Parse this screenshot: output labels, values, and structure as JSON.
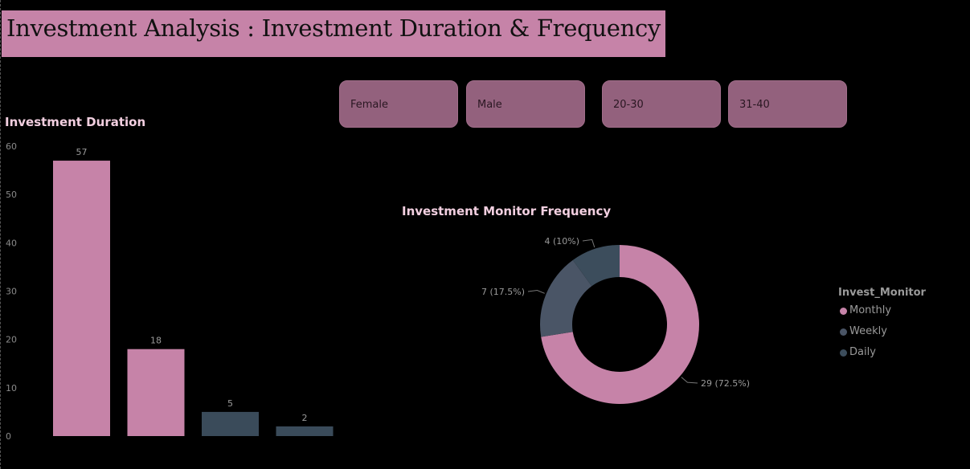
{
  "title": "Investment Analysis : Investment Duration & Frequency",
  "slicers": [
    "Female",
    "Male",
    "20-30",
    "31-40"
  ],
  "colors": {
    "pink": "#c683a8",
    "slate": "#3f4b59",
    "slate_mid": "#4a5566",
    "slicer_bg": "#93617d"
  },
  "chart_data": [
    {
      "type": "bar",
      "title": "Investment Duration",
      "categories": [
        "",
        "",
        "",
        ""
      ],
      "values": [
        57,
        18,
        5,
        2
      ],
      "data_labels": [
        "57",
        "18",
        "5",
        "2"
      ],
      "bar_colors": [
        "#c683a8",
        "#c683a8",
        "#3a4b5a",
        "#3a4b5a"
      ],
      "ylim": [
        0,
        60
      ],
      "yticks": [
        "0",
        "10",
        "20",
        "30",
        "40",
        "50",
        "60"
      ],
      "xlabel": "",
      "ylabel": "",
      "grid": false
    },
    {
      "type": "pie",
      "title": "Investment Monitor Frequency",
      "legend_title": "Invest_Monitor",
      "legend_position": "right",
      "donut": true,
      "series": [
        {
          "name": "Monthly",
          "value": 29,
          "label": "29 (72.5%)",
          "color": "#c683a8"
        },
        {
          "name": "Weekly",
          "value": 7,
          "label": "7 (17.5%)",
          "color": "#4a5566"
        },
        {
          "name": "Daily",
          "value": 4,
          "label": "4 (10%)",
          "color": "#3c4d5c"
        }
      ]
    }
  ]
}
